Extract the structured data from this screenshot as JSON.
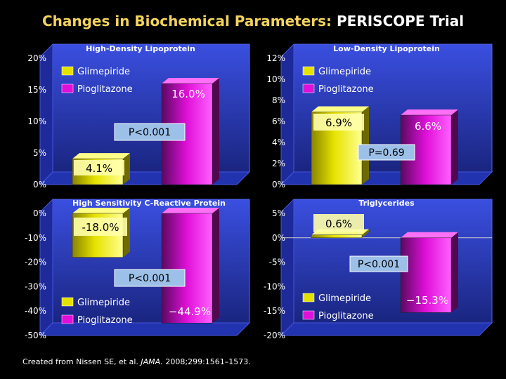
{
  "title": {
    "part1": "Changes in Biochemical Parameters: ",
    "part2": "PERISCOPE Trial"
  },
  "footer": {
    "prefix": "Created from Nissen SE, et al. ",
    "journal": "JAMA.",
    "suffix": " 2008;299:1561–1573."
  },
  "colors": {
    "glimepiride": "#E6E200",
    "pioglitazone": "#E010D8",
    "panel_blue": "#2E3FC8",
    "floor_blue": "#2233B0",
    "value_box": "#FFFFAA",
    "p_box": "#9CC0E8"
  },
  "chart_data": [
    {
      "type": "bar",
      "title": "High-Density Lipoprotein",
      "categories": [
        "Glimepiride",
        "Pioglitazone"
      ],
      "values": [
        4.1,
        16.0
      ],
      "value_labels": [
        "4.1%",
        "16.0%"
      ],
      "ylim": [
        0,
        20
      ],
      "ticks": [
        "20%",
        "15%",
        "10%",
        "5%",
        "0%"
      ],
      "p_value": "P<0.001",
      "legend": [
        "Glimepiride",
        "Pioglitazone"
      ],
      "legend_position": "top-left"
    },
    {
      "type": "bar",
      "title": "Low-Density Lipoprotein",
      "categories": [
        "Glimepiride",
        "Pioglitazone"
      ],
      "values": [
        6.9,
        6.6
      ],
      "value_labels": [
        "6.9%",
        "6.6%"
      ],
      "ylim": [
        0,
        12
      ],
      "ticks": [
        "12%",
        "10%",
        "8%",
        "6%",
        "4%",
        "2%",
        "0%"
      ],
      "p_value": "P=0.69",
      "legend": [
        "Glimepiride",
        "Pioglitazone"
      ],
      "legend_position": "top-left"
    },
    {
      "type": "bar",
      "title": "High Sensitivity C-Reactive Protein",
      "categories": [
        "Glimepiride",
        "Pioglitazone"
      ],
      "values": [
        -18.0,
        -44.9
      ],
      "value_labels": [
        "-18.0%",
        "−44.9%"
      ],
      "ylim": [
        -50,
        0
      ],
      "ticks": [
        "0%",
        "-10%",
        "-20%",
        "-30%",
        "-40%",
        "-50%"
      ],
      "p_value": "P<0.001",
      "legend": [
        "Glimepiride",
        "Pioglitazone"
      ],
      "legend_position": "bottom-left"
    },
    {
      "type": "bar",
      "title": "Triglycerides",
      "categories": [
        "Glimepiride",
        "Pioglitazone"
      ],
      "values": [
        0.6,
        -15.3
      ],
      "value_labels": [
        "0.6%",
        "−15.3%"
      ],
      "ylim": [
        -20,
        5
      ],
      "ticks": [
        "5%",
        "0%",
        "-5%",
        "-10%",
        "-15%",
        "-20%"
      ],
      "p_value": "P<0.001",
      "legend": [
        "Glimepiride",
        "Pioglitazone"
      ],
      "legend_position": "bottom-left"
    }
  ]
}
